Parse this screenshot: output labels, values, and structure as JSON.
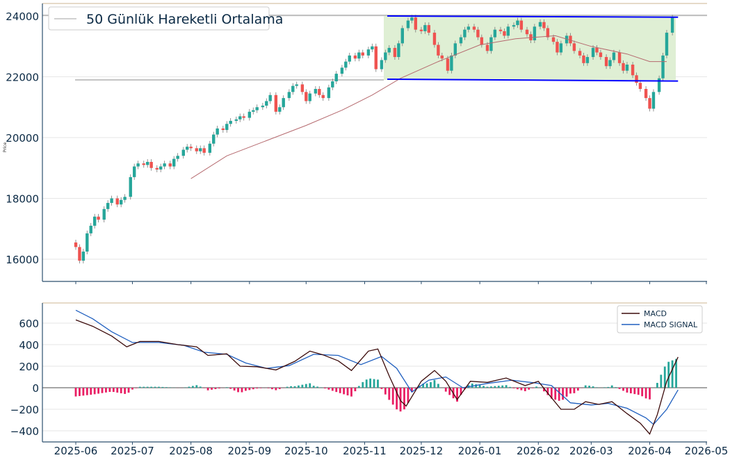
{
  "chart_data": [
    {
      "type": "candlestick",
      "title": "",
      "ylabel": "Price",
      "ylim": [
        15300,
        24400
      ],
      "yticks": [
        16000,
        18000,
        20000,
        22000,
        24000
      ],
      "grid": true,
      "legend": {
        "placement": "top-left",
        "entries": [
          "50 Günlük Hareketli Ortalama"
        ]
      },
      "colors": {
        "up": "#26a69a",
        "down": "#ef5350",
        "ma": "#b5696e",
        "channel": "#0000ff",
        "zone": "#dcedcf",
        "level": "#999999"
      },
      "series": [
        {
          "name": "50 Günlük Hareketli Ortalama",
          "points": [
            [
              "2025-08-01",
              18650
            ],
            [
              "2025-08-20",
              19400
            ],
            [
              "2025-09-10",
              19900
            ],
            [
              "2025-10-01",
              20400
            ],
            [
              "2025-10-20",
              20900
            ],
            [
              "2025-11-05",
              21400
            ],
            [
              "2025-11-20",
              21950
            ],
            [
              "2025-12-10",
              22500
            ],
            [
              "2026-01-01",
              23050
            ],
            [
              "2026-01-20",
              23250
            ],
            [
              "2026-02-10",
              23350
            ],
            [
              "2026-03-01",
              23000
            ],
            [
              "2026-03-20",
              22750
            ],
            [
              "2026-04-01",
              22500
            ],
            [
              "2026-04-10",
              22500
            ]
          ]
        }
      ],
      "closes": [
        [
          "2025-06-01",
          16400
        ],
        [
          "2025-06-03",
          15950
        ],
        [
          "2025-06-05",
          16250
        ],
        [
          "2025-06-07",
          16850
        ],
        [
          "2025-06-09",
          17100
        ],
        [
          "2025-06-11",
          17400
        ],
        [
          "2025-06-13",
          17300
        ],
        [
          "2025-06-16",
          17650
        ],
        [
          "2025-06-18",
          17850
        ],
        [
          "2025-06-20",
          18000
        ],
        [
          "2025-06-23",
          17800
        ],
        [
          "2025-06-25",
          17950
        ],
        [
          "2025-06-27",
          18050
        ],
        [
          "2025-06-30",
          18700
        ],
        [
          "2025-07-02",
          19050
        ],
        [
          "2025-07-04",
          19150
        ],
        [
          "2025-07-07",
          19100
        ],
        [
          "2025-07-09",
          19200
        ],
        [
          "2025-07-11",
          19000
        ],
        [
          "2025-07-14",
          18950
        ],
        [
          "2025-07-16",
          19050
        ],
        [
          "2025-07-18",
          19150
        ],
        [
          "2025-07-21",
          19050
        ],
        [
          "2025-07-23",
          19300
        ],
        [
          "2025-07-25",
          19400
        ],
        [
          "2025-07-28",
          19600
        ],
        [
          "2025-07-30",
          19700
        ],
        [
          "2025-08-01",
          19650
        ],
        [
          "2025-08-04",
          19550
        ],
        [
          "2025-08-06",
          19650
        ],
        [
          "2025-08-08",
          19500
        ],
        [
          "2025-08-11",
          19800
        ],
        [
          "2025-08-13",
          20100
        ],
        [
          "2025-08-15",
          20300
        ],
        [
          "2025-08-18",
          20250
        ],
        [
          "2025-08-20",
          20450
        ],
        [
          "2025-08-22",
          20550
        ],
        [
          "2025-08-25",
          20600
        ],
        [
          "2025-08-27",
          20700
        ],
        [
          "2025-08-29",
          20650
        ],
        [
          "2025-09-01",
          20850
        ],
        [
          "2025-09-03",
          20900
        ],
        [
          "2025-09-05",
          21000
        ],
        [
          "2025-09-08",
          21050
        ],
        [
          "2025-09-10",
          21200
        ],
        [
          "2025-09-12",
          21400
        ],
        [
          "2025-09-15",
          20850
        ],
        [
          "2025-09-17",
          21000
        ],
        [
          "2025-09-19",
          21300
        ],
        [
          "2025-09-22",
          21500
        ],
        [
          "2025-09-24",
          21700
        ],
        [
          "2025-09-26",
          21750
        ],
        [
          "2025-09-29",
          21500
        ],
        [
          "2025-10-01",
          21200
        ],
        [
          "2025-10-03",
          21450
        ],
        [
          "2025-10-06",
          21600
        ],
        [
          "2025-10-08",
          21400
        ],
        [
          "2025-10-10",
          21300
        ],
        [
          "2025-10-13",
          21650
        ],
        [
          "2025-10-15",
          21850
        ],
        [
          "2025-10-17",
          22100
        ],
        [
          "2025-10-20",
          22300
        ],
        [
          "2025-10-22",
          22500
        ],
        [
          "2025-10-24",
          22700
        ],
        [
          "2025-10-27",
          22600
        ],
        [
          "2025-10-29",
          22800
        ],
        [
          "2025-10-31",
          22700
        ],
        [
          "2025-11-03",
          22900
        ],
        [
          "2025-11-05",
          23000
        ],
        [
          "2025-11-07",
          22250
        ],
        [
          "2025-11-10",
          22550
        ],
        [
          "2025-11-12",
          22800
        ],
        [
          "2025-11-14",
          22950
        ],
        [
          "2025-11-17",
          22650
        ],
        [
          "2025-11-19",
          23100
        ],
        [
          "2025-11-21",
          23600
        ],
        [
          "2025-11-24",
          23850
        ],
        [
          "2025-11-26",
          23950
        ],
        [
          "2025-11-28",
          23550
        ],
        [
          "2025-12-01",
          23500
        ],
        [
          "2025-12-03",
          23700
        ],
        [
          "2025-12-05",
          23450
        ],
        [
          "2025-12-08",
          23050
        ],
        [
          "2025-12-10",
          22700
        ],
        [
          "2025-12-12",
          22600
        ],
        [
          "2025-12-15",
          22200
        ],
        [
          "2025-12-17",
          22700
        ],
        [
          "2025-12-19",
          23100
        ],
        [
          "2025-12-22",
          23300
        ],
        [
          "2025-12-24",
          23550
        ],
        [
          "2025-12-26",
          23650
        ],
        [
          "2025-12-29",
          23550
        ],
        [
          "2025-12-31",
          23300
        ],
        [
          "2026-01-02",
          23050
        ],
        [
          "2026-01-05",
          22850
        ],
        [
          "2026-01-07",
          23300
        ],
        [
          "2026-01-09",
          23550
        ],
        [
          "2026-01-12",
          23500
        ],
        [
          "2026-01-14",
          23350
        ],
        [
          "2026-01-16",
          23650
        ],
        [
          "2026-01-19",
          23700
        ],
        [
          "2026-01-21",
          23850
        ],
        [
          "2026-01-23",
          23550
        ],
        [
          "2026-01-26",
          23400
        ],
        [
          "2026-01-28",
          23200
        ],
        [
          "2026-01-30",
          23650
        ],
        [
          "2026-02-02",
          23800
        ],
        [
          "2026-02-04",
          23600
        ],
        [
          "2026-02-06",
          23300
        ],
        [
          "2026-02-09",
          23150
        ],
        [
          "2026-02-11",
          22800
        ],
        [
          "2026-02-13",
          23100
        ],
        [
          "2026-02-16",
          23350
        ],
        [
          "2026-02-18",
          23100
        ],
        [
          "2026-02-20",
          22850
        ],
        [
          "2026-02-23",
          22700
        ],
        [
          "2026-02-25",
          22450
        ],
        [
          "2026-02-27",
          22650
        ],
        [
          "2026-03-02",
          22950
        ],
        [
          "2026-03-04",
          22800
        ],
        [
          "2026-03-06",
          22650
        ],
        [
          "2026-03-09",
          22350
        ],
        [
          "2026-03-11",
          22550
        ],
        [
          "2026-03-13",
          22800
        ],
        [
          "2026-03-16",
          22450
        ],
        [
          "2026-03-18",
          22200
        ],
        [
          "2026-03-20",
          22400
        ],
        [
          "2026-03-23",
          22050
        ],
        [
          "2026-03-25",
          21800
        ],
        [
          "2026-03-27",
          21600
        ],
        [
          "2026-03-30",
          21300
        ],
        [
          "2026-04-01",
          20950
        ],
        [
          "2026-04-03",
          21500
        ],
        [
          "2026-04-06",
          21950
        ],
        [
          "2026-04-08",
          22700
        ],
        [
          "2026-04-10",
          23450
        ],
        [
          "2026-04-13",
          23950
        ]
      ],
      "annotations": {
        "channel_upper": [
          [
            "2025-11-13",
            24000
          ],
          [
            "2026-04-16",
            23960
          ]
        ],
        "channel_lower": [
          [
            "2025-11-13",
            21920
          ],
          [
            "2026-04-16",
            21860
          ]
        ],
        "horizontal_levels": [
          24000,
          21900
        ]
      }
    },
    {
      "type": "line",
      "title": "",
      "ylim": [
        -500,
        780
      ],
      "yticks": [
        -400,
        -200,
        0,
        200,
        400,
        600
      ],
      "grid": true,
      "legend": {
        "placement": "top-right",
        "entries": [
          "MACD",
          "MACD SIGNAL"
        ]
      },
      "colors": {
        "macd": "#3b0a0a",
        "signal": "#1f5fbf",
        "hist_pos": "#26a69a",
        "hist_neg": "#e91e63"
      },
      "series": [
        {
          "name": "MACD",
          "points": [
            [
              "2025-06-01",
              630
            ],
            [
              "2025-06-10",
              570
            ],
            [
              "2025-06-20",
              480
            ],
            [
              "2025-06-28",
              380
            ],
            [
              "2025-07-05",
              430
            ],
            [
              "2025-07-15",
              430
            ],
            [
              "2025-07-25",
              400
            ],
            [
              "2025-08-04",
              380
            ],
            [
              "2025-08-10",
              300
            ],
            [
              "2025-08-20",
              315
            ],
            [
              "2025-08-27",
              200
            ],
            [
              "2025-09-05",
              195
            ],
            [
              "2025-09-15",
              165
            ],
            [
              "2025-09-25",
              245
            ],
            [
              "2025-10-03",
              340
            ],
            [
              "2025-10-10",
              305
            ],
            [
              "2025-10-18",
              250
            ],
            [
              "2025-10-25",
              160
            ],
            [
              "2025-11-03",
              340
            ],
            [
              "2025-11-08",
              360
            ],
            [
              "2025-11-14",
              110
            ],
            [
              "2025-11-20",
              -120
            ],
            [
              "2025-11-23",
              -170
            ],
            [
              "2025-12-01",
              60
            ],
            [
              "2025-12-08",
              160
            ],
            [
              "2025-12-14",
              60
            ],
            [
              "2025-12-20",
              -110
            ],
            [
              "2025-12-27",
              60
            ],
            [
              "2026-01-05",
              50
            ],
            [
              "2026-01-15",
              90
            ],
            [
              "2026-01-25",
              20
            ],
            [
              "2026-02-01",
              60
            ],
            [
              "2026-02-06",
              -50
            ],
            [
              "2026-02-13",
              -200
            ],
            [
              "2026-02-20",
              -200
            ],
            [
              "2026-02-26",
              -130
            ],
            [
              "2026-03-05",
              -155
            ],
            [
              "2026-03-12",
              -130
            ],
            [
              "2026-03-20",
              -240
            ],
            [
              "2026-03-27",
              -330
            ],
            [
              "2026-04-01",
              -430
            ],
            [
              "2026-04-05",
              -250
            ],
            [
              "2026-04-10",
              60
            ],
            [
              "2026-04-16",
              285
            ]
          ]
        },
        {
          "name": "MACD SIGNAL",
          "points": [
            [
              "2025-06-01",
              720
            ],
            [
              "2025-06-10",
              640
            ],
            [
              "2025-06-20",
              520
            ],
            [
              "2025-07-01",
              420
            ],
            [
              "2025-07-15",
              420
            ],
            [
              "2025-07-28",
              395
            ],
            [
              "2025-08-08",
              330
            ],
            [
              "2025-08-20",
              310
            ],
            [
              "2025-08-30",
              230
            ],
            [
              "2025-09-10",
              180
            ],
            [
              "2025-09-22",
              205
            ],
            [
              "2025-10-05",
              310
            ],
            [
              "2025-10-18",
              300
            ],
            [
              "2025-10-30",
              215
            ],
            [
              "2025-11-10",
              290
            ],
            [
              "2025-11-18",
              180
            ],
            [
              "2025-11-26",
              -40
            ],
            [
              "2025-12-05",
              70
            ],
            [
              "2025-12-14",
              100
            ],
            [
              "2025-12-23",
              0
            ],
            [
              "2026-01-05",
              40
            ],
            [
              "2026-01-18",
              70
            ],
            [
              "2026-01-30",
              45
            ],
            [
              "2026-02-08",
              20
            ],
            [
              "2026-02-18",
              -140
            ],
            [
              "2026-03-01",
              -160
            ],
            [
              "2026-03-10",
              -145
            ],
            [
              "2026-03-20",
              -190
            ],
            [
              "2026-03-30",
              -280
            ],
            [
              "2026-04-03",
              -340
            ],
            [
              "2026-04-10",
              -200
            ],
            [
              "2026-04-16",
              -20
            ]
          ]
        }
      ],
      "histogram_note": "MACD minus signal, drawn as bars"
    }
  ],
  "x_axis": {
    "tick_labels": [
      "2025-06",
      "2025-07",
      "2025-08",
      "2025-09",
      "2025-10",
      "2025-11",
      "2025-12",
      "2026-01",
      "2026-02",
      "2026-03",
      "2026-04",
      "2026-05"
    ]
  }
}
